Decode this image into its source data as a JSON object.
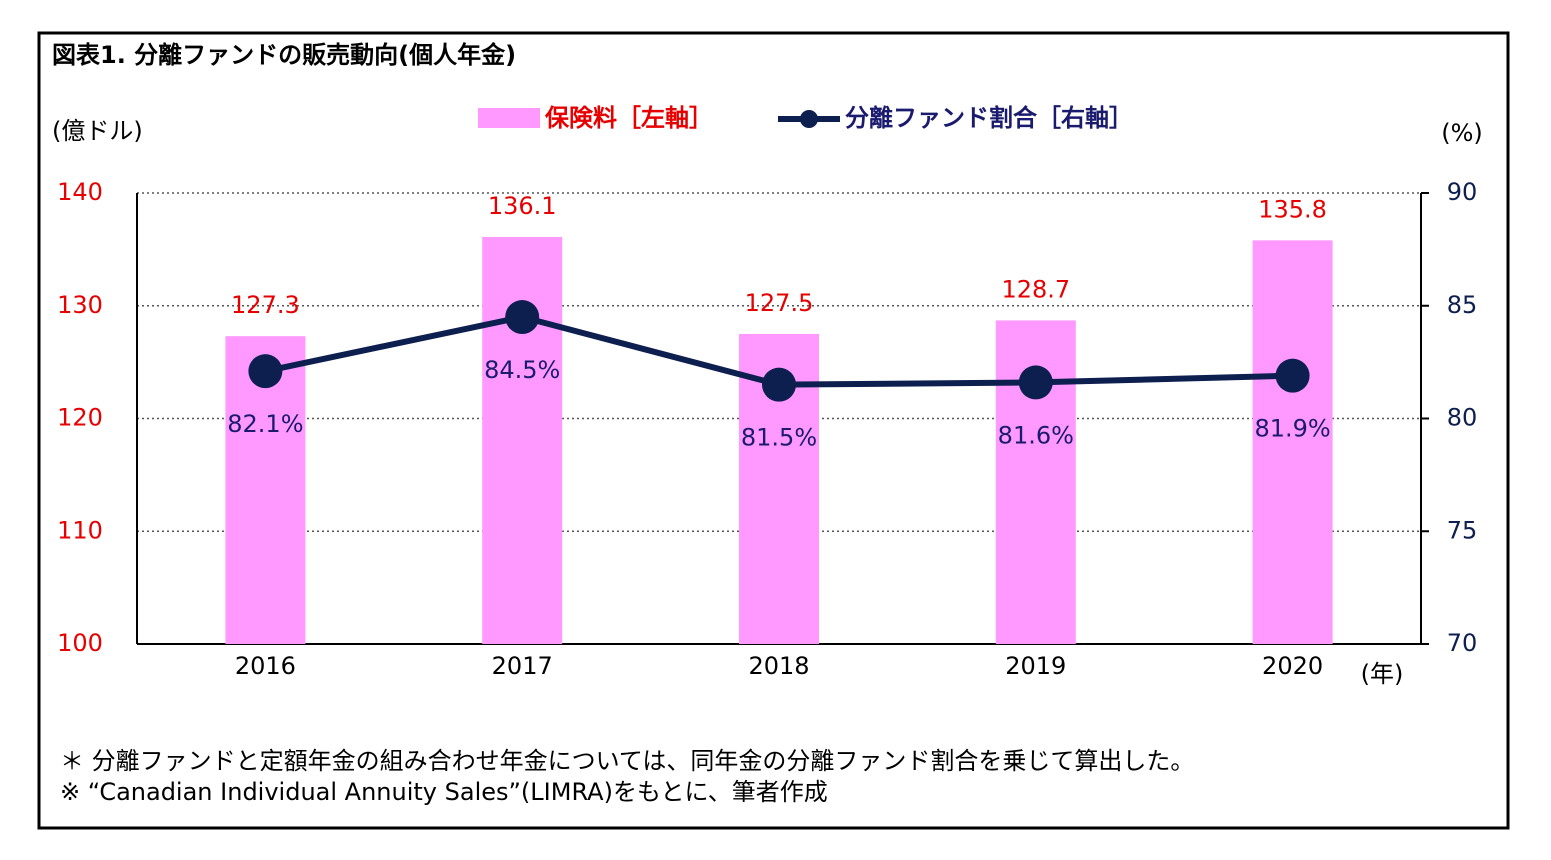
{
  "chart_data": {
    "type": "bar",
    "title": "図表1. 分離ファンドの販売動向(個人年金)",
    "y_label": "(億ドル)",
    "y2_label": "(%)",
    "x_label": "(年)",
    "categories": [
      "2016",
      "2017",
      "2018",
      "2019",
      "2020"
    ],
    "series": [
      {
        "name": "保険料［左軸］",
        "color": "#ff99ff",
        "label_color": "#e60000",
        "values": [
          127.3,
          136.1,
          127.5,
          128.7,
          135.8
        ]
      },
      {
        "name": "分離ファンド割合［右軸］",
        "type": "line",
        "axis": "y2",
        "color": "#0d1f4f",
        "label_color": "#1a1a6e",
        "values": [
          82.1,
          84.5,
          81.5,
          81.6,
          81.9
        ],
        "value_labels": [
          "82.1%",
          "84.5%",
          "81.5%",
          "81.6%",
          "81.9%"
        ]
      }
    ],
    "ylim": [
      100,
      140
    ],
    "yticks": [
      100,
      110,
      120,
      130,
      140
    ],
    "y2lim": [
      70,
      90
    ],
    "y2ticks": [
      70,
      75,
      80,
      85,
      90
    ],
    "grid": true,
    "notes": [
      "＊ 分離ファンドと定額年金の組み合わせ年金については、同年金の分離ファンド割合を乗じて算出した。",
      "※ “Canadian Individual Annuity Sales”(LIMRA)をもとに、筆者作成"
    ]
  }
}
